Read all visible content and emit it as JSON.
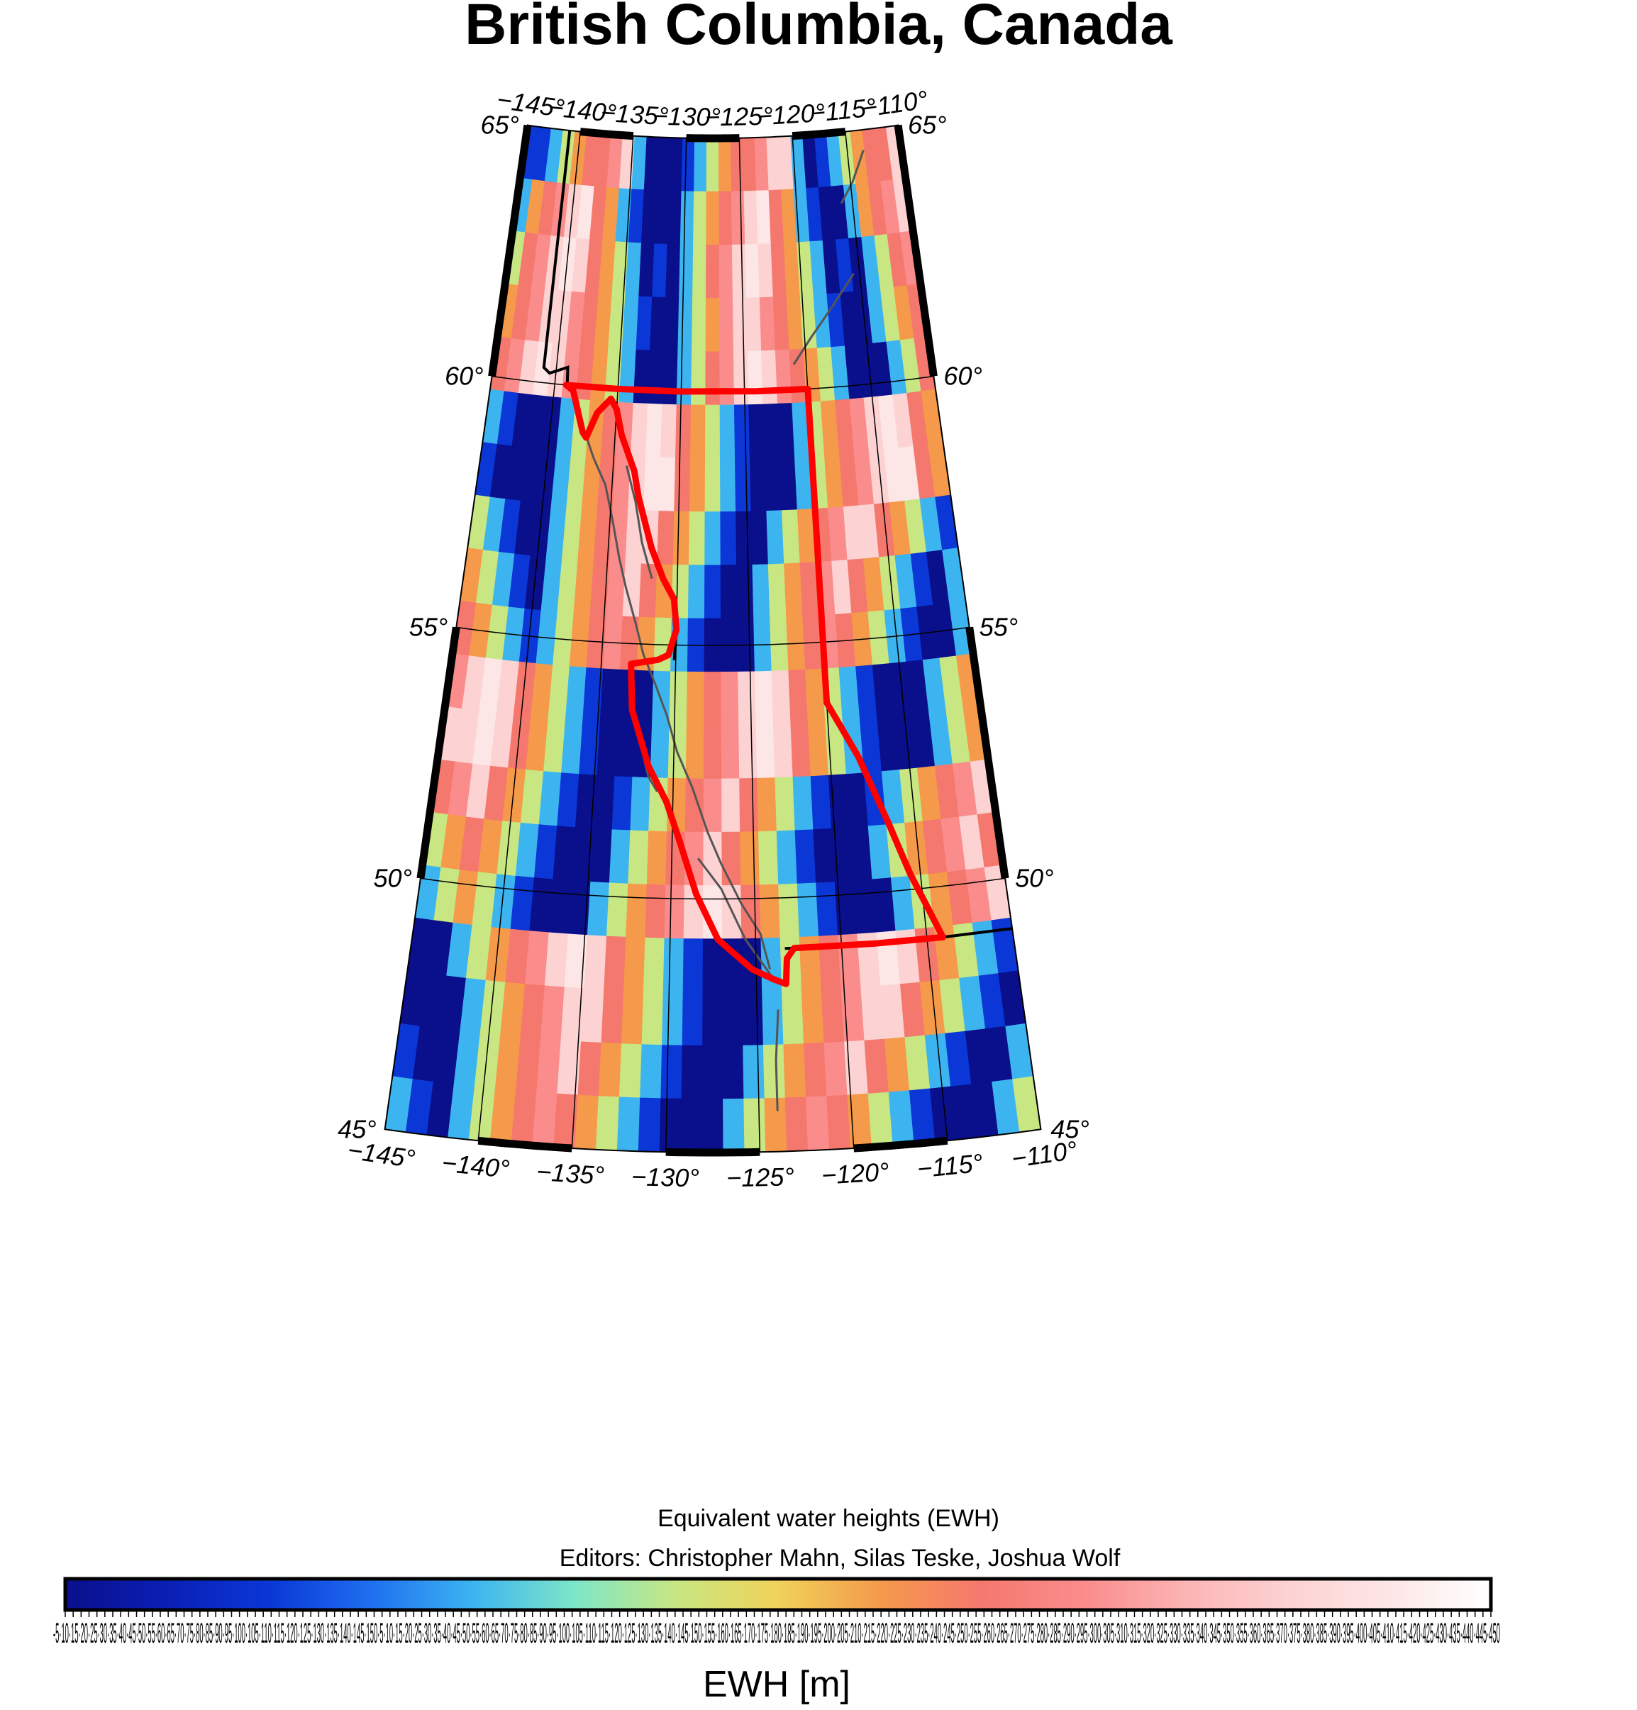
{
  "title": "British Columbia, Canada",
  "caption_line1": "Equivalent water heights (EWH)",
  "caption_line2": "Editors: Christopher Mahn, Silas Teske, Joshua Wolf",
  "colorbar": {
    "label": "EWH [m]",
    "colors": [
      "#0a0f8c",
      "#0a1fb4",
      "#0a37d6",
      "#1f6ff0",
      "#3cb4f0",
      "#7de6c8",
      "#c8e682",
      "#f0d25a",
      "#f59a4a",
      "#f5786e",
      "#fa8c8c",
      "#fcb4b4",
      "#fcd2d2",
      "#fde6e6",
      "#ffffff"
    ],
    "tick_labels_overlapping": "-5·10·15·20·25·30·35·40·45·50·55·60·65·70·75·80·85·90·95·100·105·110·115·120·125·130·135·140·145·150·5·10·15·20·25·30·35·40·45·50·55·60·65·70·75·80·85·90·95·100·105·110·115·120·125·130·135·140·145·150·155·160·165·170·175·180·185·190·195·200·205·210·215·220·225·230·235·240·245·250·255·260·265·270·275·280·285·290·295·300·305·310·315·320·325·330·335·340·345·350·355·360·365·370·375·380·385·390·395·400·405·410·415·420·425·430·435·440·445·450"
  },
  "grid": {
    "lon_labels_top": [
      "−145°",
      "−140°",
      "−135°",
      "−130°",
      "−125°",
      "−120°",
      "−115°",
      "−110°"
    ],
    "lon_labels_bottom": [
      "−145°",
      "−140°",
      "−135°",
      "−130°",
      "−125°",
      "−120°",
      "−115°",
      "−110°"
    ],
    "lat_labels_left": [
      "65°",
      "60°",
      "55°",
      "50°",
      "45°"
    ],
    "lat_labels_right": [
      "65°",
      "60°",
      "55°",
      "50°",
      "45°"
    ]
  },
  "map_data": {
    "projection": "conic",
    "lon_range": [
      -145,
      -110
    ],
    "lat_range": [
      45,
      65
    ],
    "ewh_pattern": [
      "BBCGOPPRSCAAABCGOPPRSSCABCGOPPS",
      "COPRSTPOCBAAACGOPRSTPOCBAACOPRS",
      "GPRSTSPOGCABACGPRSTSPOGCABACGPR",
      "OPRSSRPOGCBAACGORSSRPOGCBAACGOP",
      "PRSTSRPOGCAAACGPRSTSRPOGCAAACGP",
      "CBAAACGOPRSTSPOGCBAAACGOPRSTSPO",
      "BAAAACGOPRSTTPOGCBAAACGOPRSTTPO",
      "GCBAACGOPRSSPOGCBAACGOPRSSPOGCB",
      "OGCBACGOPRSPOGCBAACGOPRSPOGCBAC",
      "POGCBCGOPRPOGCBAAACGOPRPOGCBAAC",
      "RSTSPOGCBAAACGOPRSTSPOGCBAAACGO",
      "SSTSPOGCBAAACGOPRSTSPOGCBAAACGO",
      "PRSPOGCBAABCGOPRSPOGCBAABCGOPRS",
      "GOPOGCBAAACGOPRSPOGCBAAACGOPRSP",
      "CGOGCBAAACGOPRSTSPOGCBAAACGOPRS",
      "AACGOPRSTSPOGCBAAACGOPRSTSPOGCB",
      "AAACGOPRSSPOGCBAAACGOPRSSPOGCBA",
      "BAACGOPRSPOGCBAAACGOPRSPOGCBAAC",
      "CBACGOPRPOGCBAAACGOPRPOGCBAAACG"
    ],
    "ewh_letter_scale": {
      "A": "#0a0f8c",
      "B": "#0a37d6",
      "C": "#3cb4f0",
      "G": "#c8e682",
      "O": "#f59a4a",
      "P": "#f5786e",
      "R": "#fa8c8c",
      "S": "#fcd2d2",
      "T": "#fde6e6"
    }
  }
}
